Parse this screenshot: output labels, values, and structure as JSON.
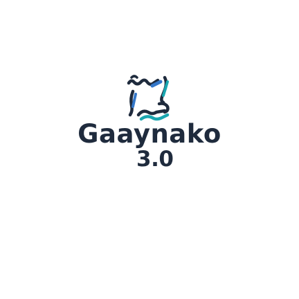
{
  "brand": {
    "name": "Gaaynako",
    "version": "3.0",
    "logo_icon": "interlocking-arrows-logo-icon"
  },
  "colors": {
    "navy": "#1f2b3d",
    "blue": "#3477c8",
    "teal": "#1aa6b0",
    "background": "#ffffff"
  }
}
